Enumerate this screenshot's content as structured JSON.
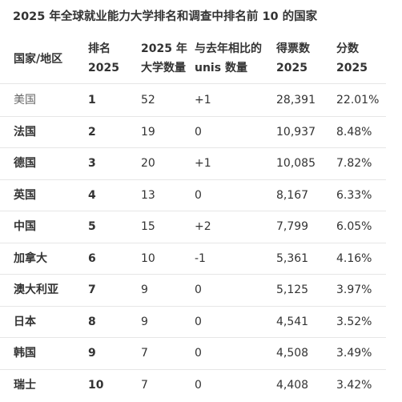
{
  "title": "2025 年全球就业能力大学排名和调查中排名前 10 的国家",
  "table": {
    "header": [
      [
        "国家/地区"
      ],
      [
        "排名",
        "2025"
      ],
      [
        "2025 年",
        "大学数量"
      ],
      [
        "与去年相比的",
        "unis 数量"
      ],
      [
        "得票数",
        "2025"
      ],
      [
        "分数",
        "2025"
      ]
    ],
    "rows": [
      [
        "美国",
        "1",
        "52",
        "+1",
        "28,391",
        "22.01%"
      ],
      [
        "法国",
        "2",
        "19",
        "0",
        "10,937",
        "8.48%"
      ],
      [
        "德国",
        "3",
        "20",
        "+1",
        "10,085",
        "7.82%"
      ],
      [
        "英国",
        "4",
        "13",
        "0",
        "8,167",
        "6.33%"
      ],
      [
        "中国",
        "5",
        "15",
        "+2",
        "7,799",
        "6.05%"
      ],
      [
        "加拿大",
        "6",
        "10",
        "-1",
        "5,361",
        "4.16%"
      ],
      [
        "澳大利亚",
        "7",
        "9",
        "0",
        "5,125",
        "3.97%"
      ],
      [
        "日本",
        "8",
        "9",
        "0",
        "4,541",
        "3.52%"
      ],
      [
        "韩国",
        "9",
        "7",
        "0",
        "4,508",
        "3.49%"
      ],
      [
        "瑞士",
        "10",
        "7",
        "0",
        "4,408",
        "3.42%"
      ]
    ]
  }
}
